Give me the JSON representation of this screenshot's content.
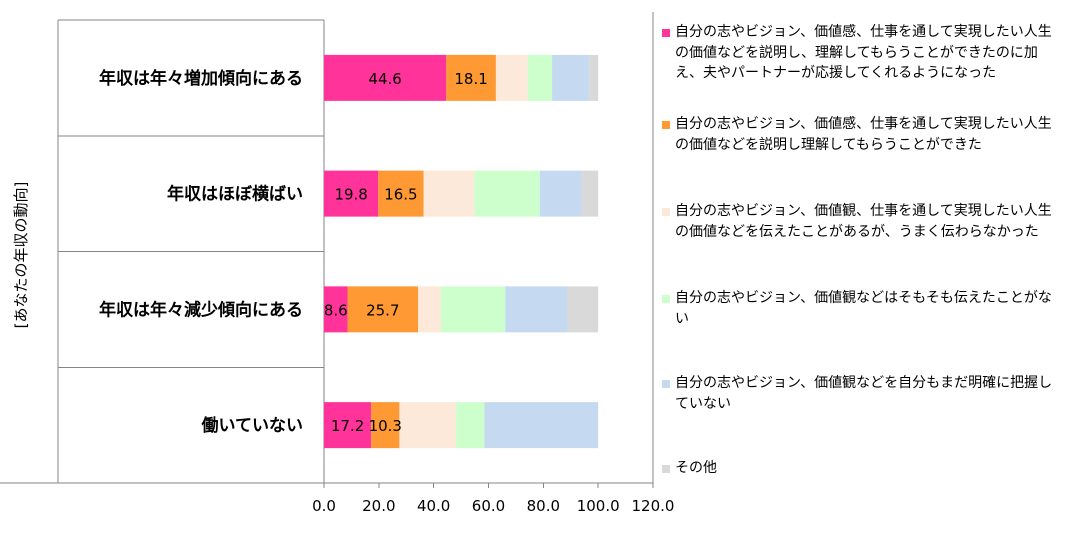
{
  "chart_data": {
    "type": "bar",
    "orientation": "horizontal",
    "stacked": true,
    "title": "",
    "xlabel": "",
    "ylabel": "[あなたの年収の動向]",
    "xlim": [
      0,
      120
    ],
    "xticks": [
      "0.0",
      "20.0",
      "40.0",
      "60.0",
      "80.0",
      "100.0",
      "120.0"
    ],
    "grid": false,
    "legend_position": "right",
    "categories": [
      "年収は年々増加傾向にある",
      "年収はほぼ横ばい",
      "年収は年々減少傾向にある",
      "働いていない"
    ],
    "series": [
      {
        "name": "自分の志やビジョン、価値感、仕事を通して実現したい人生の価値などを説明し、理解してもらうことができたのに加え、夫やパートナーが応援してくれるようになった",
        "color": "#ff3399",
        "values": [
          44.6,
          19.8,
          8.6,
          17.2
        ],
        "show_labels": true
      },
      {
        "name": "自分の志やビジョン、価値感、仕事を通して実現したい人生の価値などを説明し理解してもらうことができた",
        "color": "#ff9933",
        "values": [
          18.1,
          16.5,
          25.7,
          10.3
        ],
        "show_labels": true
      },
      {
        "name": "自分の志やビジョン、価値観、仕事を通して実現したい人生の価値などを伝えたことがあるが、うまく伝わらなかった",
        "color": "#fde9d9",
        "values": [
          11.6,
          18.5,
          8.4,
          20.7
        ],
        "show_labels": false
      },
      {
        "name": "自分の志やビジョン、価値観などはそもそも伝えたことがない",
        "color": "#ccffcc",
        "values": [
          8.9,
          23.9,
          23.4,
          10.3
        ],
        "show_labels": false
      },
      {
        "name": "自分の志やビジョン、価値観などを自分もまだ明確に把握していない",
        "color": "#c5d9f1",
        "values": [
          13.4,
          15.2,
          22.7,
          41.5
        ],
        "show_labels": false
      },
      {
        "name": "その他",
        "color": "#d9d9d9",
        "values": [
          3.4,
          6.1,
          11.2,
          0.0
        ],
        "show_labels": false
      }
    ]
  }
}
